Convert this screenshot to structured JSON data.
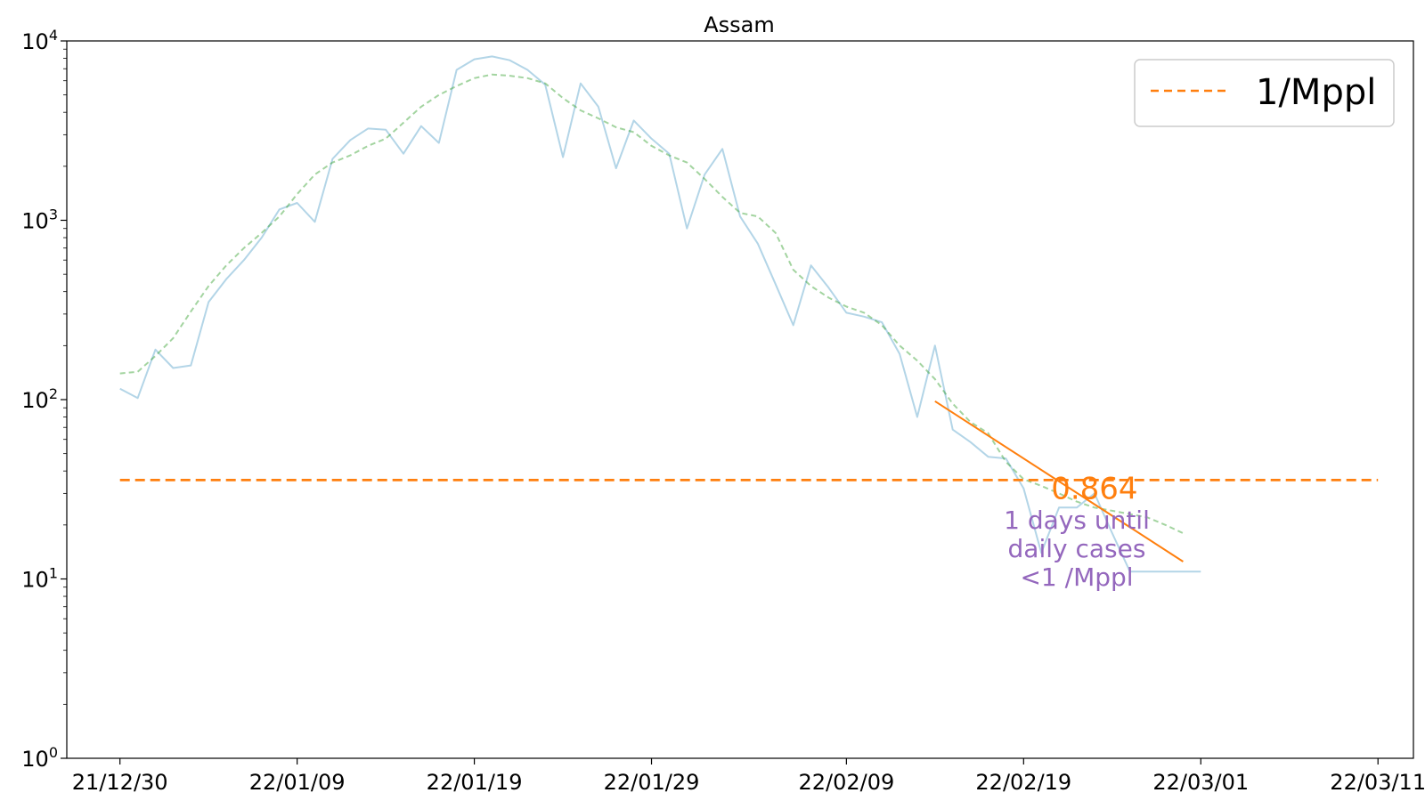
{
  "chart_data": {
    "type": "line",
    "title": "Assam",
    "xlabel": "",
    "ylabel": "",
    "y_scale": "log",
    "ylim": [
      1,
      10000
    ],
    "xlim": [
      "2021-12-27",
      "2022-03-13"
    ],
    "grid": false,
    "legend_position": "top-right",
    "x_tick_labels": [
      "21/12/30",
      "22/01/09",
      "22/01/19",
      "22/01/29",
      "22/02/09",
      "22/02/19",
      "22/03/01",
      "22/03/11"
    ],
    "x_tick_dates": [
      "2021-12-30",
      "2022-01-09",
      "2022-01-19",
      "2022-01-29",
      "2022-02-09",
      "2022-02-19",
      "2022-03-01",
      "2022-03-11"
    ],
    "y_ticks": [
      {
        "value": 1,
        "base": "10",
        "exp": "0"
      },
      {
        "value": 10,
        "base": "10",
        "exp": "1"
      },
      {
        "value": 100,
        "base": "10",
        "exp": "2"
      },
      {
        "value": 1000,
        "base": "10",
        "exp": "3"
      },
      {
        "value": 10000,
        "base": "10",
        "exp": "4"
      }
    ],
    "series": [
      {
        "color": "#a6cee3",
        "style": "solid",
        "x": [
          "2021-12-30",
          "2021-12-31",
          "2022-01-01",
          "2022-01-02",
          "2022-01-03",
          "2022-01-04",
          "2022-01-05",
          "2022-01-06",
          "2022-01-07",
          "2022-01-08",
          "2022-01-09",
          "2022-01-10",
          "2022-01-11",
          "2022-01-12",
          "2022-01-13",
          "2022-01-14",
          "2022-01-15",
          "2022-01-16",
          "2022-01-17",
          "2022-01-18",
          "2022-01-19",
          "2022-01-20",
          "2022-01-21",
          "2022-01-22",
          "2022-01-23",
          "2022-01-24",
          "2022-01-25",
          "2022-01-26",
          "2022-01-27",
          "2022-01-28",
          "2022-01-29",
          "2022-01-30",
          "2022-01-31",
          "2022-02-01",
          "2022-02-02",
          "2022-02-03",
          "2022-02-04",
          "2022-02-05",
          "2022-02-06",
          "2022-02-07",
          "2022-02-08",
          "2022-02-09",
          "2022-02-10",
          "2022-02-11",
          "2022-02-12",
          "2022-02-13",
          "2022-02-14",
          "2022-02-15",
          "2022-02-16",
          "2022-02-17",
          "2022-02-18",
          "2022-02-19",
          "2022-02-20",
          "2022-02-21",
          "2022-02-22",
          "2022-02-23",
          "2022-02-24",
          "2022-02-25",
          "2022-02-26",
          "2022-02-27",
          "2022-02-28",
          "2022-03-01"
        ],
        "values": [
          115,
          102,
          190,
          150,
          155,
          350,
          470,
          600,
          800,
          1150,
          1250,
          980,
          2200,
          2800,
          3250,
          3200,
          2350,
          3350,
          2700,
          6900,
          7900,
          8200,
          7800,
          6900,
          5700,
          2250,
          5800,
          4300,
          1950,
          3600,
          2850,
          2350,
          900,
          1800,
          2500,
          1050,
          740,
          440,
          260,
          560,
          420,
          305,
          290,
          270,
          180,
          80,
          200,
          68,
          58,
          48,
          47,
          32,
          14,
          25,
          25,
          30,
          18,
          11,
          11,
          11,
          11,
          11
        ]
      },
      {
        "color": "#33a02c",
        "style": "dashed",
        "x": [
          "2021-12-30",
          "2021-12-31",
          "2022-01-01",
          "2022-01-02",
          "2022-01-03",
          "2022-01-04",
          "2022-01-05",
          "2022-01-06",
          "2022-01-07",
          "2022-01-08",
          "2022-01-09",
          "2022-01-10",
          "2022-01-11",
          "2022-01-12",
          "2022-01-13",
          "2022-01-14",
          "2022-01-15",
          "2022-01-16",
          "2022-01-17",
          "2022-01-18",
          "2022-01-19",
          "2022-01-20",
          "2022-01-21",
          "2022-01-22",
          "2022-01-23",
          "2022-01-24",
          "2022-01-25",
          "2022-01-26",
          "2022-01-27",
          "2022-01-28",
          "2022-01-29",
          "2022-01-30",
          "2022-01-31",
          "2022-02-01",
          "2022-02-02",
          "2022-02-03",
          "2022-02-04",
          "2022-02-05",
          "2022-02-06",
          "2022-02-07",
          "2022-02-08",
          "2022-02-09",
          "2022-02-10",
          "2022-02-11",
          "2022-02-12",
          "2022-02-13",
          "2022-02-14",
          "2022-02-15",
          "2022-02-16",
          "2022-02-17",
          "2022-02-18",
          "2022-02-19",
          "2022-02-20",
          "2022-02-21",
          "2022-02-22",
          "2022-02-23",
          "2022-02-24",
          "2022-02-25",
          "2022-02-26",
          "2022-02-27",
          "2022-02-28"
        ],
        "values": [
          140,
          143,
          175,
          220,
          310,
          430,
          560,
          700,
          850,
          1050,
          1400,
          1800,
          2100,
          2300,
          2600,
          2850,
          3500,
          4300,
          5000,
          5600,
          6200,
          6500,
          6400,
          6200,
          5800,
          4800,
          4100,
          3700,
          3300,
          3100,
          2600,
          2300,
          2100,
          1700,
          1350,
          1100,
          1050,
          850,
          530,
          430,
          370,
          330,
          305,
          260,
          200,
          165,
          130,
          95,
          75,
          65,
          45,
          36,
          33,
          30,
          27,
          25,
          24,
          23,
          22,
          20,
          18
        ]
      },
      {
        "name": "1/Mppl",
        "color": "#ff7f0e",
        "style": "dashed",
        "x": [
          "2021-12-30",
          "2022-03-11"
        ],
        "values": [
          35.6,
          35.6
        ]
      },
      {
        "color": "#ff7f0e",
        "style": "solid",
        "x": [
          "2022-02-14",
          "2022-02-28"
        ],
        "values": [
          98,
          12.5
        ]
      }
    ],
    "annotations": [
      {
        "text": "0.864",
        "x": "2022-02-23",
        "y": 32,
        "color": "#ff7f0e"
      },
      {
        "lines": [
          "1 days until",
          "daily cases",
          "<1 /Mppl"
        ],
        "x": "2022-02-22",
        "y": 18,
        "color": "#9467bd"
      }
    ]
  }
}
